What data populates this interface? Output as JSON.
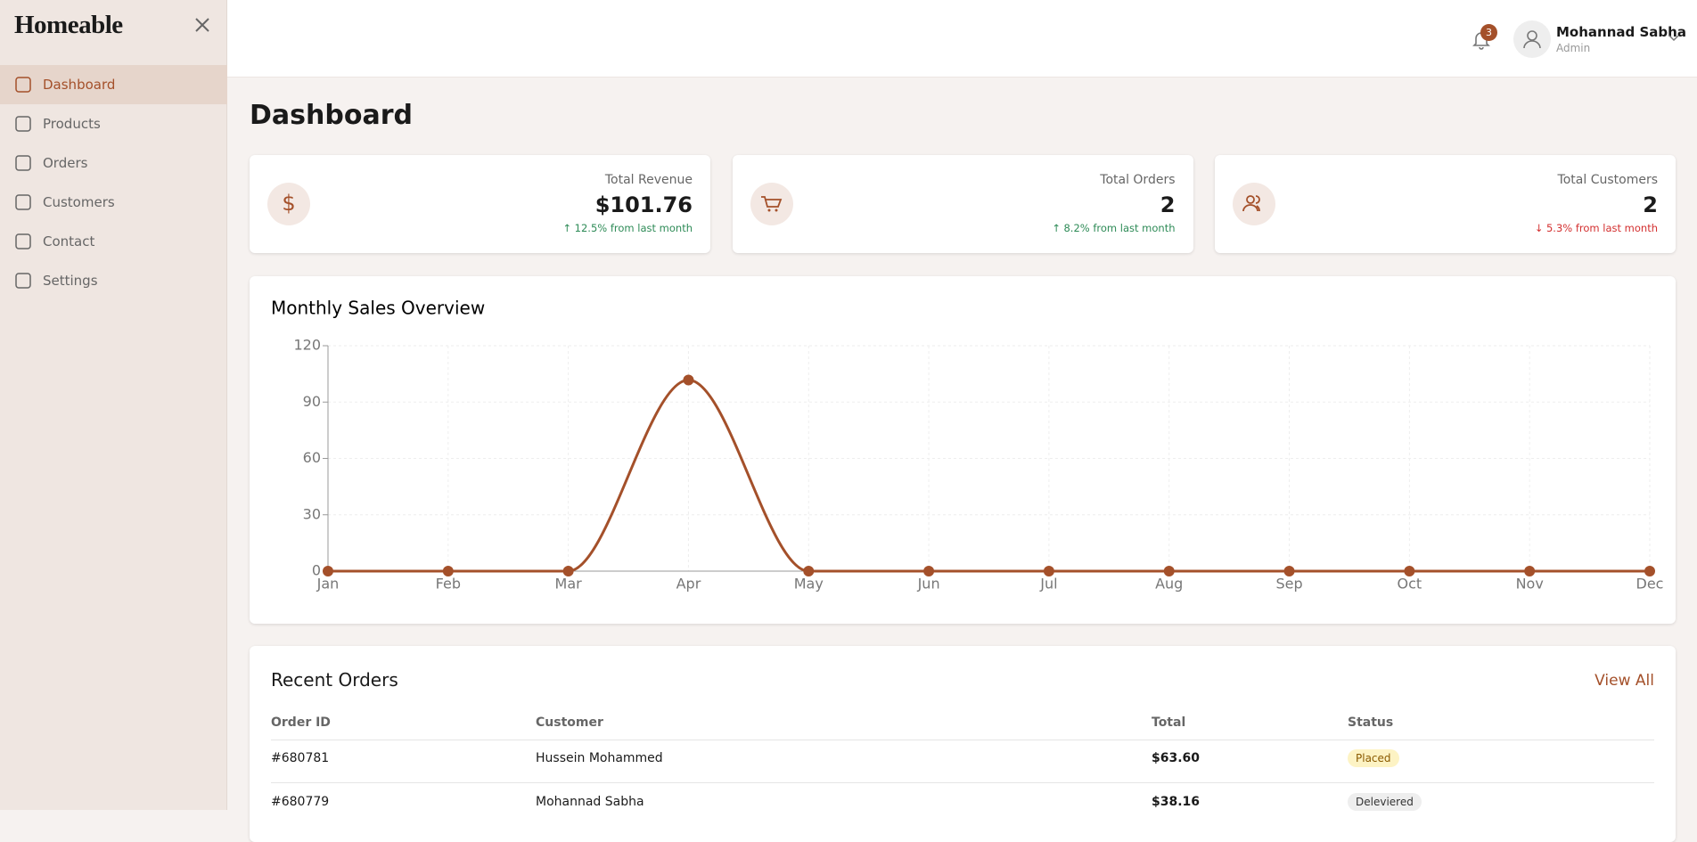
{
  "sidebar": {
    "brand": "Homeable",
    "nav": [
      "Dashboard",
      "Products",
      "Orders",
      "Customers",
      "Contact",
      "Settings"
    ],
    "active": 0
  },
  "header": {
    "notifications": "3",
    "user_name": "Mohannad Sabha",
    "user_role": "Admin"
  },
  "page_title": "Dashboard",
  "stats": [
    {
      "label": "Total Revenue",
      "value": "$101.76",
      "delta": "↑ 12.5% from last month",
      "trend": "up"
    },
    {
      "label": "Total Orders",
      "value": "2",
      "delta": "↑ 8.2% from last month",
      "trend": "up"
    },
    {
      "label": "Total Customers",
      "value": "2",
      "delta": "↓ 5.3% from last month",
      "trend": "down"
    }
  ],
  "chart_data": {
    "type": "line",
    "title": "Monthly Sales Overview",
    "categories": [
      "Jan",
      "Feb",
      "Mar",
      "Apr",
      "May",
      "Jun",
      "Jul",
      "Aug",
      "Sep",
      "Oct",
      "Nov",
      "Dec"
    ],
    "series": [
      {
        "name": "Sales",
        "color": "#a4502a",
        "values": [
          0,
          0,
          0,
          101.76,
          0,
          0,
          0,
          0,
          0,
          0,
          0,
          0
        ]
      }
    ],
    "ylim": [
      0,
      120
    ],
    "yticks": [
      0,
      30,
      60,
      90,
      120
    ],
    "grid": true,
    "smooth": true
  },
  "recent_orders": {
    "title": "Recent Orders",
    "view_all": "View All",
    "columns": [
      "Order ID",
      "Customer",
      "Total",
      "Status"
    ],
    "rows": [
      [
        "#680781",
        "Hussein Mohammed",
        "$63.60",
        "Placed"
      ],
      [
        "#680779",
        "Mohannad Sabha",
        "$38.16",
        "Deleviered"
      ]
    ]
  }
}
